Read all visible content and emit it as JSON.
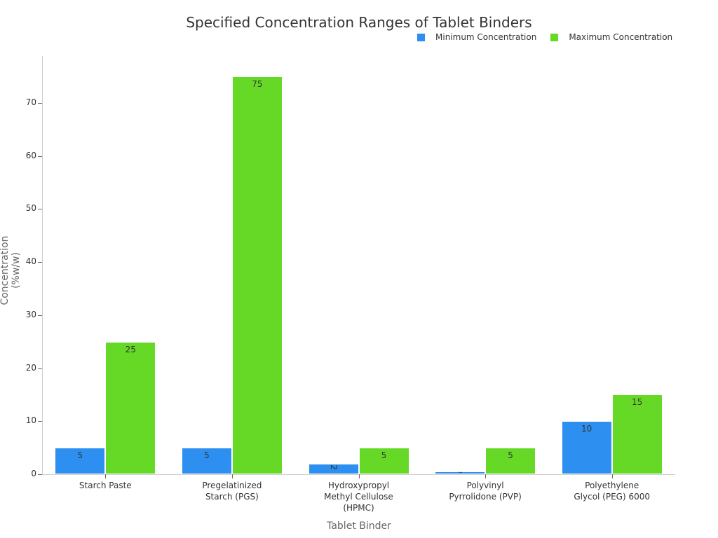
{
  "chart_data": {
    "type": "bar",
    "title": "Specified Concentration Ranges of Tablet Binders",
    "xlabel": "Tablet Binder",
    "ylabel": "Concentration (%w/w)",
    "ylim": [
      0,
      79
    ],
    "yticks": [
      0,
      10,
      20,
      30,
      40,
      50,
      60,
      70
    ],
    "grid": false,
    "legend_position": "top-right",
    "categories": [
      "Starch Paste",
      "Pregelatinized Starch (PGS)",
      "Hydroxypropyl Methyl Cellulose (HPMC)",
      "Polyvinyl Pyrrolidone (PVP)",
      "Polyethylene Glycol (PEG) 6000"
    ],
    "category_lines": [
      [
        "Starch Paste"
      ],
      [
        "Pregelatinized",
        "Starch (PGS)"
      ],
      [
        "Hydroxypropyl",
        "Methyl Cellulose",
        "(HPMC)"
      ],
      [
        "Polyvinyl",
        "Pyrrolidone (PVP)"
      ],
      [
        "Polyethylene",
        "Glycol (PEG) 6000"
      ]
    ],
    "series": [
      {
        "name": "Minimum Concentration",
        "color": "#2d8ff0",
        "values": [
          5,
          5,
          2,
          0.5,
          10
        ],
        "labels": [
          "5",
          "5",
          "2",
          "1",
          "10"
        ]
      },
      {
        "name": "Maximum Concentration",
        "color": "#66d926",
        "values": [
          25,
          75,
          5,
          5,
          15
        ],
        "labels": [
          "25",
          "75",
          "5",
          "5",
          "15"
        ]
      }
    ]
  }
}
